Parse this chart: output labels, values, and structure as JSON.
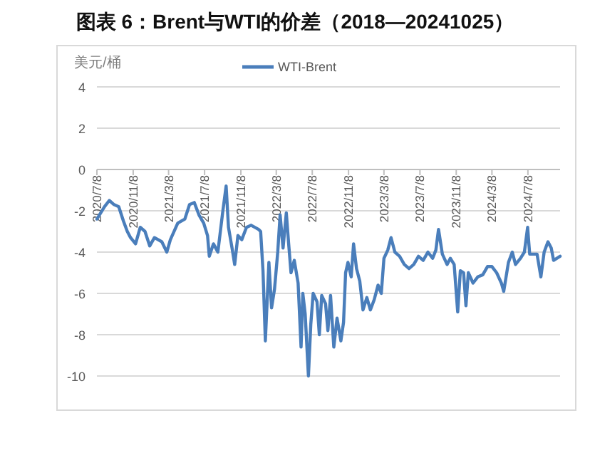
{
  "chart_data": {
    "type": "line",
    "title": "图表 6：Brent与WTI的价差（2018—20241025）",
    "ylabel": "美元/桶",
    "legend": "top",
    "grid": "y",
    "marker": "none",
    "line_style": "solid",
    "xlim": [
      "2020-07-08",
      "2024-10-25"
    ],
    "xticks": [
      {
        "value": "2020-07-08",
        "label": "2020/7/8"
      },
      {
        "value": "2020-11-08",
        "label": "2020/11/8"
      },
      {
        "value": "2021-03-08",
        "label": "2021/3/8"
      },
      {
        "value": "2021-07-08",
        "label": "2021/7/8"
      },
      {
        "value": "2021-11-08",
        "label": "2021/11/8"
      },
      {
        "value": "2022-03-08",
        "label": "2022/3/8"
      },
      {
        "value": "2022-07-08",
        "label": "2022/7/8"
      },
      {
        "value": "2022-11-08",
        "label": "2022/11/8"
      },
      {
        "value": "2023-03-08",
        "label": "2023/3/8"
      },
      {
        "value": "2023-07-08",
        "label": "2023/7/8"
      },
      {
        "value": "2023-11-08",
        "label": "2023/11/8"
      },
      {
        "value": "2024-03-08",
        "label": "2024/3/8"
      },
      {
        "value": "2024-07-08",
        "label": "2024/7/8"
      }
    ],
    "ylim": [
      -10,
      4
    ],
    "yticks": [
      -10,
      -8,
      -6,
      -4,
      -2,
      0,
      2,
      4
    ],
    "x": [
      "2020-07-08",
      "2020-08-03",
      "2020-08-19",
      "2020-09-04",
      "2020-09-20",
      "2020-10-06",
      "2020-10-19",
      "2020-10-30",
      "2020-11-16",
      "2020-12-02",
      "2020-12-18",
      "2021-01-03",
      "2021-01-19",
      "2021-02-13",
      "2021-03-02",
      "2021-03-14",
      "2021-04-08",
      "2021-05-02",
      "2021-05-18",
      "2021-06-03",
      "2021-06-19",
      "2021-07-05",
      "2021-07-18",
      "2021-07-24",
      "2021-08-07",
      "2021-08-22",
      "2021-09-08",
      "2021-09-19",
      "2021-09-27",
      "2021-10-09",
      "2021-10-18",
      "2021-10-29",
      "2021-11-11",
      "2021-11-27",
      "2021-12-13",
      "2022-01-07",
      "2022-01-14",
      "2022-01-22",
      "2022-01-30",
      "2022-02-11",
      "2022-02-20",
      "2022-03-02",
      "2022-03-13",
      "2022-03-21",
      "2022-03-31",
      "2022-04-11",
      "2022-04-19",
      "2022-04-27",
      "2022-05-08",
      "2022-05-21",
      "2022-05-31",
      "2022-06-06",
      "2022-06-14",
      "2022-06-25",
      "2022-07-03",
      "2022-07-11",
      "2022-07-24",
      "2022-08-01",
      "2022-08-09",
      "2022-08-22",
      "2022-08-30",
      "2022-09-08",
      "2022-09-19",
      "2022-09-30",
      "2022-10-13",
      "2022-10-22",
      "2022-10-29",
      "2022-11-06",
      "2022-11-17",
      "2022-11-25",
      "2022-12-05",
      "2022-12-16",
      "2022-12-27",
      "2023-01-09",
      "2023-01-21",
      "2023-02-03",
      "2023-02-16",
      "2023-02-27",
      "2023-03-08",
      "2023-03-21",
      "2023-04-01",
      "2023-04-14",
      "2023-04-30",
      "2023-05-16",
      "2023-06-01",
      "2023-06-17",
      "2023-07-03",
      "2023-07-19",
      "2023-08-04",
      "2023-08-20",
      "2023-08-31",
      "2023-09-09",
      "2023-09-22",
      "2023-10-08",
      "2023-10-19",
      "2023-11-01",
      "2023-11-13",
      "2023-11-22",
      "2023-12-03",
      "2023-12-11",
      "2023-12-19",
      "2024-01-04",
      "2024-01-20",
      "2024-02-06",
      "2024-02-22",
      "2024-03-08",
      "2024-03-24",
      "2024-04-09",
      "2024-04-17",
      "2024-05-03",
      "2024-05-16",
      "2024-05-27",
      "2024-06-13",
      "2024-06-26",
      "2024-07-07",
      "2024-07-14",
      "2024-08-08",
      "2024-08-21",
      "2024-09-01",
      "2024-09-14",
      "2024-09-25",
      "2024-10-03",
      "2024-10-25"
    ],
    "series": [
      {
        "name": "WTI-Brent",
        "color": "#4a7ebb",
        "values": [
          -2.4,
          -1.8,
          -1.5,
          -1.7,
          -1.8,
          -2.5,
          -3.0,
          -3.3,
          -3.6,
          -2.8,
          -3.0,
          -3.7,
          -3.3,
          -3.5,
          -4.0,
          -3.4,
          -2.6,
          -2.4,
          -1.7,
          -1.6,
          -2.2,
          -2.6,
          -3.2,
          -4.2,
          -3.6,
          -4.0,
          -2.0,
          -0.8,
          -2.8,
          -3.8,
          -4.6,
          -3.2,
          -3.4,
          -2.8,
          -2.7,
          -2.9,
          -3.0,
          -4.9,
          -8.3,
          -4.5,
          -6.7,
          -5.8,
          -4.0,
          -2.2,
          -3.8,
          -2.1,
          -3.6,
          -5.0,
          -4.4,
          -5.5,
          -8.6,
          -6.0,
          -7.0,
          -10.0,
          -7.5,
          -6.0,
          -6.4,
          -8.0,
          -6.1,
          -6.5,
          -7.8,
          -6.1,
          -8.6,
          -7.2,
          -8.3,
          -7.4,
          -5.0,
          -4.5,
          -5.2,
          -3.6,
          -4.8,
          -5.4,
          -6.8,
          -6.2,
          -6.8,
          -6.3,
          -5.6,
          -6.0,
          -4.3,
          -3.9,
          -3.3,
          -4.0,
          -4.2,
          -4.6,
          -4.8,
          -4.6,
          -4.2,
          -4.4,
          -4.0,
          -4.3,
          -3.9,
          -2.9,
          -4.1,
          -4.6,
          -4.3,
          -4.6,
          -6.9,
          -4.9,
          -5.0,
          -6.6,
          -5.0,
          -5.5,
          -5.2,
          -5.1,
          -4.7,
          -4.7,
          -5.0,
          -5.5,
          -5.9,
          -4.5,
          -4.0,
          -4.6,
          -4.3,
          -4.0,
          -2.8,
          -4.1,
          -4.1,
          -5.2,
          -4.0,
          -3.5,
          -3.8,
          -4.4,
          -4.2
        ]
      }
    ]
  }
}
